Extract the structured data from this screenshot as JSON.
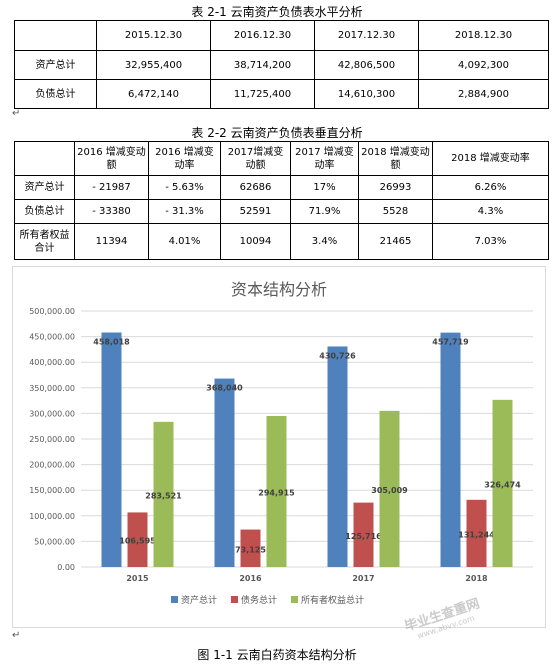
{
  "table1": {
    "caption": "表 2-1 云南资产负债表水平分析",
    "headers": [
      "",
      "2015.12.30",
      "2016.12.30",
      "2017.12.30",
      "2018.12.30"
    ],
    "rows": [
      [
        "资产总计",
        "32,955,400",
        "38,714,200",
        "42,806,500",
        "4,092,300"
      ],
      [
        "负债总计",
        "6,472,140",
        "11,725,400",
        "14,610,300",
        "2,884,900"
      ]
    ]
  },
  "table2": {
    "caption": "表 2-2 云南资产负债表垂直分析",
    "headers": [
      "",
      "2016 增减变动额",
      "2016 增减变动率",
      "2017增减变动额",
      "2017 增减变动率",
      "2018 增减变动额",
      "2018 增减变动率"
    ],
    "rows": [
      [
        "资产总计",
        "- 21987",
        "- 5.63%",
        "62686",
        "17%",
        "26993",
        "6.26%"
      ],
      [
        "负债总计",
        "- 33380",
        "- 31.3%",
        "52591",
        "71.9%",
        "5528",
        "4.3%"
      ],
      [
        "所有者权益合计",
        "11394",
        "4.01%",
        "10094",
        "3.4%",
        "21465",
        "7.03%"
      ]
    ]
  },
  "chart_data": {
    "type": "bar",
    "title": "资本结构分析",
    "categories": [
      "2015",
      "2016",
      "2017",
      "2018"
    ],
    "series": [
      {
        "name": "资产总计",
        "color": "#4f81bd",
        "values": [
          458018,
          368040,
          430726,
          457719
        ],
        "labels": [
          "458,018",
          "368,040",
          "430,726",
          "457,719"
        ]
      },
      {
        "name": "债务总计",
        "color": "#c0504d",
        "values": [
          106595,
          73125,
          125716,
          131244
        ],
        "labels": [
          "106,595",
          "73,125",
          "125,716",
          "131,244"
        ]
      },
      {
        "name": "所有者权益总计",
        "color": "#9bbb59",
        "values": [
          283521,
          294915,
          305009,
          326474
        ],
        "labels": [
          "283,521",
          "294,915",
          "305,009",
          "326,474"
        ]
      }
    ],
    "ylim": [
      0,
      500000
    ],
    "yticks": [
      "0.00",
      "50,000.00",
      "100,000.00",
      "150,000.00",
      "200,000.00",
      "250,000.00",
      "300,000.00",
      "350,000.00",
      "400,000.00",
      "450,000.00",
      "500,000.00"
    ],
    "grid": true,
    "legend": "bottom"
  },
  "figure_caption": "图 1-1 云南白药资本结构分析",
  "watermark": {
    "text": "毕业生查重网",
    "url": "www.abvv.com"
  }
}
